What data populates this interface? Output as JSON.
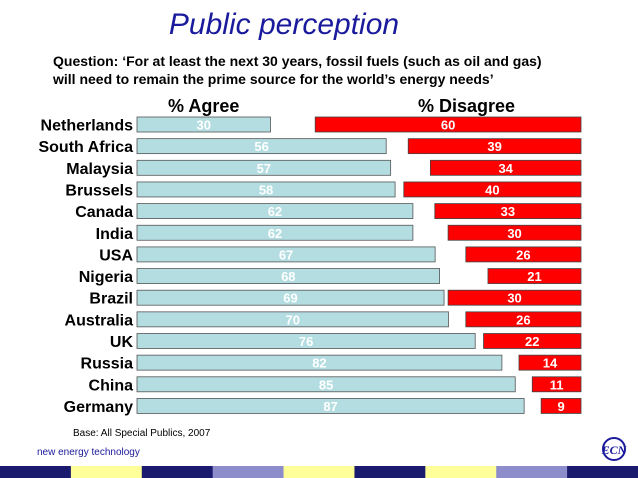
{
  "title": "Public perception",
  "question_line1": "Question: ‘For at least the next 30 years, fossil fuels (such as oil and gas)",
  "question_line2": "will need to remain the prime source for the world’s energy needs’",
  "header_agree": "% Agree",
  "header_disagree": "% Disagree",
  "base_note": "Base: All Special Publics, 2007",
  "brand_text": "new energy technology",
  "logo_text": "ECN",
  "colors": {
    "agree_fill": "#b3dde0",
    "agree_label": "#ffffff",
    "disagree_fill": "#ff0000",
    "disagree_label": "#ffffff",
    "title": "#1a1a9c",
    "stripe": [
      "#1a1a6e",
      "#ffff99",
      "#1a1a6e",
      "#8d8dcc",
      "#ffff99",
      "#1a1a6e",
      "#ffff99",
      "#8d8dcc",
      "#1a1a6e"
    ]
  },
  "chart_data": {
    "type": "bar",
    "orientation": "horizontal",
    "title": "Public perception",
    "categories": [
      "Netherlands",
      "South Africa",
      "Malaysia",
      "Brussels",
      "Canada",
      "India",
      "USA",
      "Nigeria",
      "Brazil",
      "Australia",
      "UK",
      "Russia",
      "China",
      "Germany"
    ],
    "series": [
      {
        "name": "% Agree",
        "values": [
          30,
          56,
          57,
          58,
          62,
          62,
          67,
          68,
          69,
          70,
          76,
          82,
          85,
          87
        ]
      },
      {
        "name": "% Disagree",
        "values": [
          60,
          39,
          34,
          40,
          33,
          30,
          26,
          21,
          30,
          26,
          22,
          14,
          11,
          9
        ]
      }
    ],
    "xlim": [
      0,
      100
    ]
  }
}
